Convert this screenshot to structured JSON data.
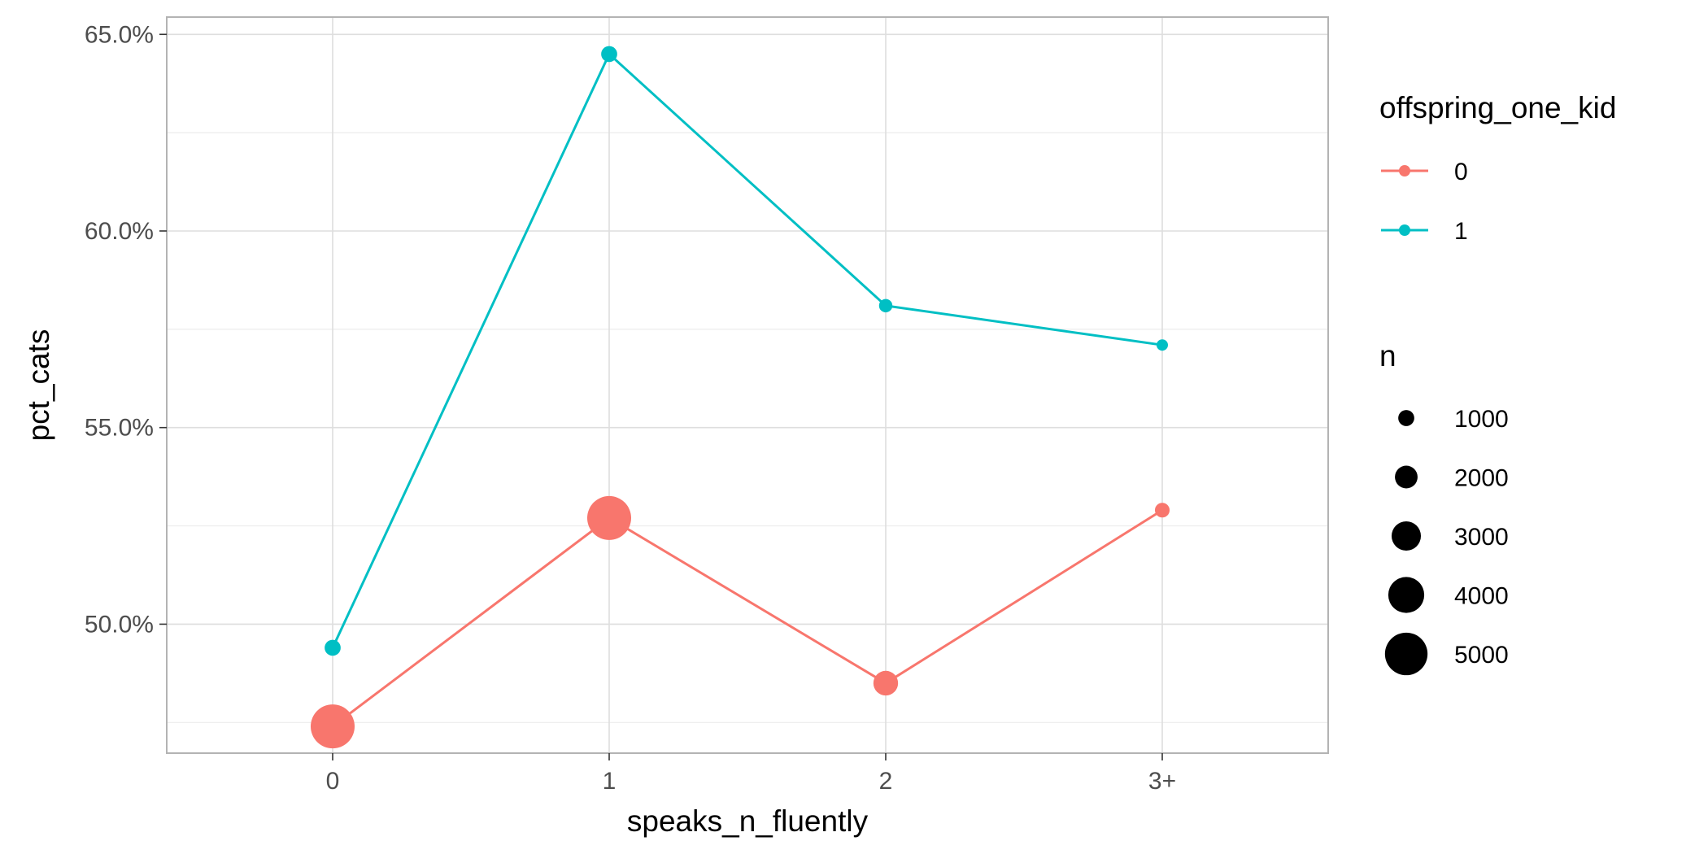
{
  "chart_data": {
    "type": "line",
    "title": "",
    "xlabel": "speaks_n_fluently",
    "ylabel": "pct_cats",
    "categories": [
      "0",
      "1",
      "2",
      "3+"
    ],
    "ylim": [
      0.4672,
      0.6544
    ],
    "yticks": [
      0.5,
      0.55,
      0.6,
      0.65
    ],
    "ytick_labels": [
      "50.0%",
      "55.0%",
      "60.0%",
      "65.0%"
    ],
    "grid": true,
    "legend_position": "right",
    "color_legend": {
      "title": "offspring_one_kid",
      "entries": [
        "0",
        "1"
      ]
    },
    "size_legend": {
      "title": "n",
      "values": [
        1000,
        2000,
        3000,
        4000,
        5000
      ],
      "labels": [
        "1000",
        "2000",
        "3000",
        "4000",
        "5000"
      ]
    },
    "series": [
      {
        "name": "0",
        "color": "#F8766D",
        "values": [
          0.474,
          0.527,
          0.485,
          0.529
        ],
        "n": [
          5200,
          5200,
          2300,
          800
        ]
      },
      {
        "name": "1",
        "color": "#00BFC4",
        "values": [
          0.494,
          0.645,
          0.581,
          0.571
        ],
        "n": [
          1000,
          1000,
          600,
          300
        ]
      }
    ],
    "size_legend_color": "#000000"
  }
}
